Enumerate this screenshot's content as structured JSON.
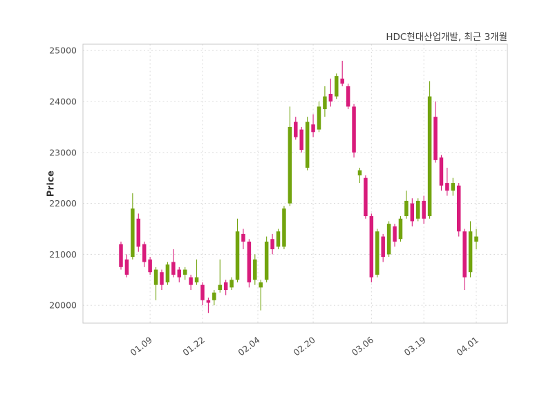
{
  "header": {
    "title": "HDC현대산업개발, 최근 3개월"
  },
  "chart_data": {
    "type": "candlestick",
    "title": "HDC현대산업개발, 최근 3개월",
    "ylabel": "Price",
    "xlabel": "",
    "grid": true,
    "legend": "none",
    "y_ticks": [
      20000,
      21000,
      22000,
      23000,
      24000,
      25000
    ],
    "ylim": [
      19650,
      25125
    ],
    "x_tick_labels": [
      "01.09",
      "01.22",
      "02.04",
      "02.20",
      "03.06",
      "03.19",
      "04.01"
    ],
    "x_tick_indices": [
      5,
      14,
      23.5,
      33,
      43,
      52,
      61
    ],
    "colors": {
      "up": "#72a40e",
      "down": "#d81b7b",
      "grid": "#d8d8d8",
      "border": "#c8c8c8",
      "tick_text": "#4d4d4d"
    },
    "candles": [
      {
        "date": "01.02",
        "open": 21200,
        "high": 21250,
        "low": 20700,
        "close": 20750
      },
      {
        "date": "01.03",
        "open": 20900,
        "high": 21000,
        "low": 20550,
        "close": 20600
      },
      {
        "date": "01.04",
        "open": 20950,
        "high": 22200,
        "low": 20900,
        "close": 21900
      },
      {
        "date": "01.05",
        "open": 21700,
        "high": 21800,
        "low": 21050,
        "close": 21150
      },
      {
        "date": "01.08",
        "open": 21200,
        "high": 21250,
        "low": 20750,
        "close": 20850
      },
      {
        "date": "01.09",
        "open": 20900,
        "high": 20950,
        "low": 20600,
        "close": 20650
      },
      {
        "date": "01.10",
        "open": 20400,
        "high": 20750,
        "low": 20100,
        "close": 20700
      },
      {
        "date": "01.11",
        "open": 20650,
        "high": 20700,
        "low": 20300,
        "close": 20400
      },
      {
        "date": "01.12",
        "open": 20450,
        "high": 20850,
        "low": 20400,
        "close": 20800
      },
      {
        "date": "01.15",
        "open": 20850,
        "high": 21100,
        "low": 20550,
        "close": 20600
      },
      {
        "date": "01.16",
        "open": 20700,
        "high": 20750,
        "low": 20450,
        "close": 20550
      },
      {
        "date": "01.17",
        "open": 20600,
        "high": 20750,
        "low": 20500,
        "close": 20700
      },
      {
        "date": "01.18",
        "open": 20550,
        "high": 20600,
        "low": 20300,
        "close": 20400
      },
      {
        "date": "01.19",
        "open": 20450,
        "high": 20900,
        "low": 20400,
        "close": 20550
      },
      {
        "date": "01.22",
        "open": 20400,
        "high": 20450,
        "low": 20000,
        "close": 20100
      },
      {
        "date": "01.23",
        "open": 20100,
        "high": 20150,
        "low": 19850,
        "close": 20050
      },
      {
        "date": "01.24",
        "open": 20100,
        "high": 20300,
        "low": 20000,
        "close": 20250
      },
      {
        "date": "01.25",
        "open": 20300,
        "high": 20900,
        "low": 20250,
        "close": 20400
      },
      {
        "date": "01.26",
        "open": 20450,
        "high": 20500,
        "low": 20200,
        "close": 20300
      },
      {
        "date": "01.29",
        "open": 20350,
        "high": 20550,
        "low": 20300,
        "close": 20500
      },
      {
        "date": "01.30",
        "open": 20500,
        "high": 21700,
        "low": 20450,
        "close": 21450
      },
      {
        "date": "01.31",
        "open": 21400,
        "high": 21500,
        "low": 21100,
        "close": 21250
      },
      {
        "date": "02.01",
        "open": 21250,
        "high": 21300,
        "low": 20350,
        "close": 20450
      },
      {
        "date": "02.02",
        "open": 20500,
        "high": 21000,
        "low": 20400,
        "close": 20900
      },
      {
        "date": "02.05",
        "open": 20350,
        "high": 20500,
        "low": 19900,
        "close": 20450
      },
      {
        "date": "02.06",
        "open": 20500,
        "high": 21350,
        "low": 20450,
        "close": 21250
      },
      {
        "date": "02.07",
        "open": 21300,
        "high": 21400,
        "low": 21000,
        "close": 21100
      },
      {
        "date": "02.08",
        "open": 21150,
        "high": 21500,
        "low": 21100,
        "close": 21450
      },
      {
        "date": "02.13",
        "open": 21150,
        "high": 21950,
        "low": 21100,
        "close": 21900
      },
      {
        "date": "02.14",
        "open": 22000,
        "high": 23900,
        "low": 21950,
        "close": 23500
      },
      {
        "date": "02.15",
        "open": 23600,
        "high": 23700,
        "low": 23250,
        "close": 23300
      },
      {
        "date": "02.16",
        "open": 23450,
        "high": 23500,
        "low": 23000,
        "close": 23050
      },
      {
        "date": "02.19",
        "open": 22700,
        "high": 23700,
        "low": 22650,
        "close": 23600
      },
      {
        "date": "02.20",
        "open": 23550,
        "high": 23750,
        "low": 23300,
        "close": 23400
      },
      {
        "date": "02.21",
        "open": 23450,
        "high": 24000,
        "low": 23400,
        "close": 23900
      },
      {
        "date": "02.22",
        "open": 23850,
        "high": 24300,
        "low": 23700,
        "close": 24100
      },
      {
        "date": "02.23",
        "open": 24150,
        "high": 24450,
        "low": 23900,
        "close": 24000
      },
      {
        "date": "02.26",
        "open": 24100,
        "high": 24550,
        "low": 24050,
        "close": 24500
      },
      {
        "date": "02.27",
        "open": 24450,
        "high": 24800,
        "low": 24300,
        "close": 24350
      },
      {
        "date": "02.28",
        "open": 24300,
        "high": 24350,
        "low": 23850,
        "close": 23900
      },
      {
        "date": "02.29",
        "open": 23900,
        "high": 23950,
        "low": 22900,
        "close": 23000
      },
      {
        "date": "03.04",
        "open": 22550,
        "high": 22700,
        "low": 22400,
        "close": 22650
      },
      {
        "date": "03.05",
        "open": 22500,
        "high": 22550,
        "low": 21700,
        "close": 21750
      },
      {
        "date": "03.06",
        "open": 21750,
        "high": 21800,
        "low": 20450,
        "close": 20550
      },
      {
        "date": "03.07",
        "open": 20600,
        "high": 21500,
        "low": 20550,
        "close": 21450
      },
      {
        "date": "03.08",
        "open": 21350,
        "high": 21400,
        "low": 20850,
        "close": 20950
      },
      {
        "date": "03.11",
        "open": 21000,
        "high": 21650,
        "low": 20950,
        "close": 21600
      },
      {
        "date": "03.12",
        "open": 21550,
        "high": 21600,
        "low": 21150,
        "close": 21250
      },
      {
        "date": "03.13",
        "open": 21300,
        "high": 21750,
        "low": 21250,
        "close": 21700
      },
      {
        "date": "03.14",
        "open": 21750,
        "high": 22250,
        "low": 21700,
        "close": 22050
      },
      {
        "date": "03.15",
        "open": 22000,
        "high": 22100,
        "low": 21550,
        "close": 21650
      },
      {
        "date": "03.18",
        "open": 21700,
        "high": 22100,
        "low": 21650,
        "close": 22050
      },
      {
        "date": "03.19",
        "open": 22050,
        "high": 22150,
        "low": 21600,
        "close": 21700
      },
      {
        "date": "03.20",
        "open": 21750,
        "high": 24400,
        "low": 21700,
        "close": 24100
      },
      {
        "date": "03.21",
        "open": 23700,
        "high": 24000,
        "low": 22800,
        "close": 22850
      },
      {
        "date": "03.22",
        "open": 22900,
        "high": 22950,
        "low": 22250,
        "close": 22350
      },
      {
        "date": "03.25",
        "open": 22400,
        "high": 22700,
        "low": 22150,
        "close": 22250
      },
      {
        "date": "03.26",
        "open": 22250,
        "high": 22500,
        "low": 22150,
        "close": 22400
      },
      {
        "date": "03.27",
        "open": 22350,
        "high": 22400,
        "low": 21350,
        "close": 21450
      },
      {
        "date": "03.28",
        "open": 21450,
        "high": 21500,
        "low": 20300,
        "close": 20550
      },
      {
        "date": "03.29",
        "open": 20650,
        "high": 21650,
        "low": 20550,
        "close": 21450
      },
      {
        "date": "04.01",
        "open": 21250,
        "high": 21500,
        "low": 21100,
        "close": 21350
      }
    ]
  }
}
